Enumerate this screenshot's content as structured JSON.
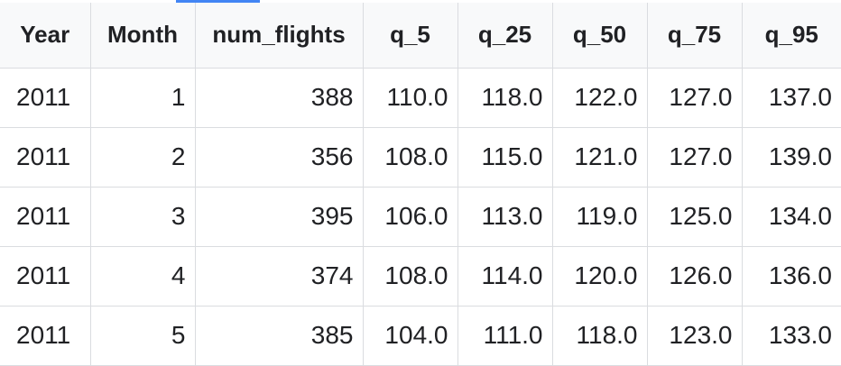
{
  "table": {
    "columns": [
      "Year",
      "Month",
      "num_flights",
      "q_5",
      "q_25",
      "q_50",
      "q_75",
      "q_95"
    ],
    "rows": [
      [
        "2011",
        "1",
        "388",
        "110.0",
        "118.0",
        "122.0",
        "127.0",
        "137.0"
      ],
      [
        "2011",
        "2",
        "356",
        "108.0",
        "115.0",
        "121.0",
        "127.0",
        "139.0"
      ],
      [
        "2011",
        "3",
        "395",
        "106.0",
        "113.0",
        "119.0",
        "125.0",
        "134.0"
      ],
      [
        "2011",
        "4",
        "374",
        "108.0",
        "114.0",
        "120.0",
        "126.0",
        "136.0"
      ],
      [
        "2011",
        "5",
        "385",
        "104.0",
        "111.0",
        "118.0",
        "123.0",
        "133.0"
      ]
    ]
  },
  "colors": {
    "accent": "#4285f4",
    "header_background": "#f8f9fa",
    "grid_line": "#dadce0",
    "text": "#202124"
  }
}
